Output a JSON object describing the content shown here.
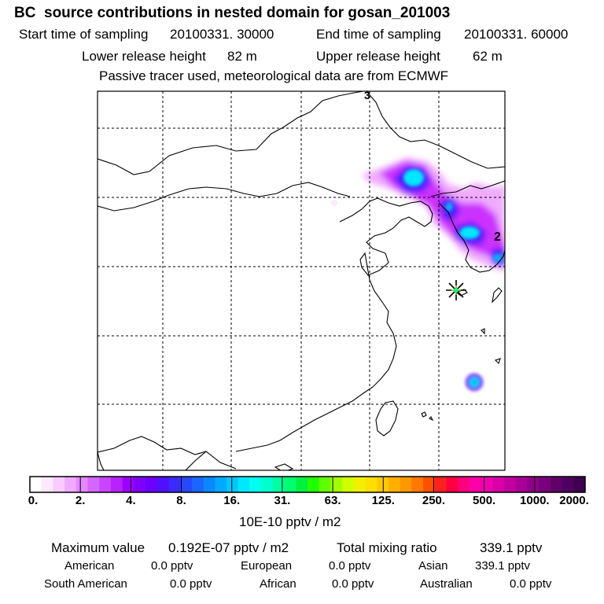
{
  "header": {
    "title": "BC  source contributions in nested domain for gosan_201003",
    "start_label": "Start time of sampling",
    "start_value": "20100331. 30000",
    "end_label": "End time of sampling",
    "end_value": "20100331. 60000",
    "lower_label": "Lower release height",
    "lower_value": "82 m",
    "upper_label": "Upper release height",
    "upper_value": "62 m",
    "tracer_note": "Passive tracer used, meteorological data are from ECMWF"
  },
  "map": {
    "contour_labels": [
      "3",
      "2"
    ],
    "grid": "dashed",
    "receptor_marker": "star",
    "plume_colors": [
      "#ff99ff",
      "#cc33ff",
      "#9900ff",
      "#3333ff",
      "#0099ff",
      "#00ffff"
    ]
  },
  "colorbar": {
    "tick_labels": [
      "0.",
      "2.",
      "4.",
      "8.",
      "16.",
      "31.",
      "63.",
      "125.",
      "250.",
      "500.",
      "1000.",
      "2000."
    ],
    "colors": [
      "#ffffff",
      "#fce8ff",
      "#f8ccff",
      "#f0aaff",
      "#e488ff",
      "#d466ff",
      "#c844ff",
      "#b822ff",
      "#9e00ff",
      "#8000ff",
      "#6a00ff",
      "#5010ff",
      "#3a2aff",
      "#2848ff",
      "#1a66ff",
      "#0a88ff",
      "#00aaff",
      "#00c8ff",
      "#00e8ff",
      "#00ffee",
      "#00ffcc",
      "#00ffa0",
      "#00ff70",
      "#00f040",
      "#20ff00",
      "#60ff00",
      "#a0ff00",
      "#d0ff00",
      "#f0f000",
      "#ffe000",
      "#ffc800",
      "#ffb000",
      "#ff9800",
      "#ff7800",
      "#ff5000",
      "#ff2020",
      "#ff0040",
      "#ff0080",
      "#ff00a8",
      "#ee00b0",
      "#d800a8",
      "#c0009e",
      "#a80096",
      "#900088",
      "#78007a",
      "#60006a",
      "#500060",
      "#400050"
    ],
    "unit": "10E-10 pptv / m2"
  },
  "summary": {
    "max_label": "Maximum value",
    "max_value": "0.192E-07 pptv / m2",
    "total_label": "Total mixing ratio",
    "total_value": "339.1 pptv",
    "regions": [
      {
        "name": "American",
        "value": "0.0 pptv"
      },
      {
        "name": "European",
        "value": "0.0 pptv"
      },
      {
        "name": "Asian",
        "value": "339.1 pptv"
      },
      {
        "name": "South American",
        "value": "0.0 pptv"
      },
      {
        "name": "African",
        "value": "0.0 pptv"
      },
      {
        "name": "Australian",
        "value": "0.0 pptv"
      }
    ]
  }
}
